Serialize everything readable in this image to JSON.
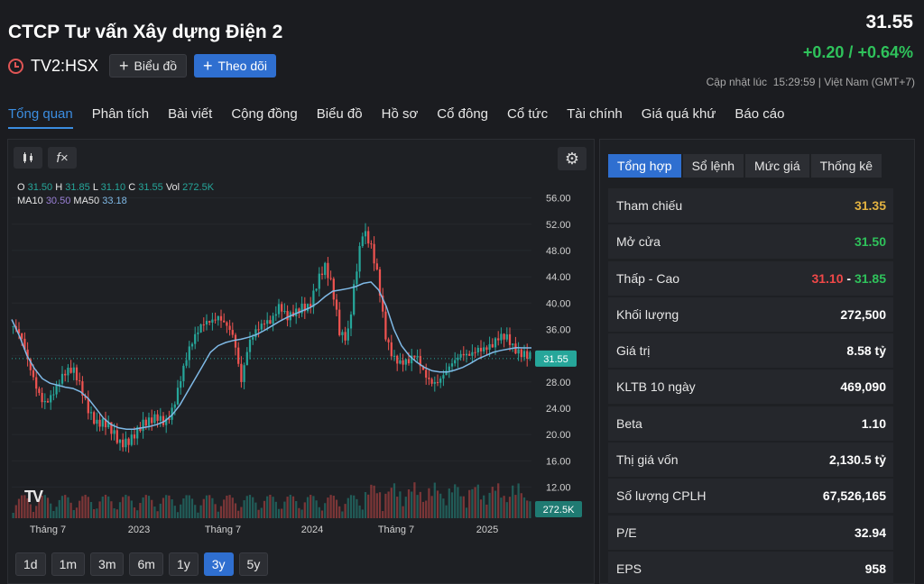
{
  "header": {
    "company": "CTCP Tư vấn Xây dựng Điện 2",
    "ticker": "TV2:HSX",
    "chart_button": "Biểu đồ",
    "follow_button": "Theo dõi",
    "price": "31.55",
    "change": "+0.20 / +0.64%",
    "updated_label": "Cập nhật lúc",
    "updated_time": "15:29:59 | Việt Nam (GMT+7)"
  },
  "nav": [
    "Tổng quan",
    "Phân tích",
    "Bài viết",
    "Cộng đồng",
    "Biểu đồ",
    "Hồ sơ",
    "Cổ đông",
    "Cổ tức",
    "Tài chính",
    "Giá quá khứ",
    "Báo cáo"
  ],
  "chart": {
    "ohlc": {
      "o_label": "O",
      "o": "31.50",
      "h_label": "H",
      "h": "31.85",
      "l_label": "L",
      "l": "31.10",
      "c_label": "C",
      "c": "31.55",
      "vol_label": "Vol",
      "vol": "272.5K"
    },
    "ma": {
      "ma10_label": "MA10",
      "ma10": "30.50",
      "ma50_label": "MA50",
      "ma50": "33.18"
    },
    "fx_icon": "f×",
    "logo": "TV",
    "last_price_tag": "31.55",
    "last_volume_tag": "272.5K"
  },
  "chart_data": {
    "type": "candlestick",
    "yaxis_ticks": [
      "56.00",
      "52.00",
      "48.00",
      "44.00",
      "40.00",
      "36.00",
      "32.00",
      "28.00",
      "24.00",
      "20.00",
      "16.00",
      "12.00"
    ],
    "ylim": [
      10,
      58
    ],
    "xaxis_ticks": [
      "Tháng 7",
      "2023",
      "Tháng 7",
      "2024",
      "Tháng 7",
      "2025"
    ],
    "close_series": [
      36.5,
      34,
      30,
      27.5,
      25.8,
      26.5,
      27.5,
      28.5,
      29.2,
      27.5,
      24.5,
      22,
      21,
      19.5,
      18.5,
      19.8,
      21,
      21.5,
      21,
      21.8,
      22,
      25,
      29,
      32,
      34,
      36.5,
      38,
      39,
      37,
      34,
      27,
      34,
      37,
      38,
      37,
      38.5,
      37,
      39,
      40.5,
      40,
      42.5,
      44.5,
      42,
      36,
      36,
      44,
      50,
      48,
      44,
      36,
      32.5,
      30.5,
      30,
      31.5,
      30,
      29,
      28.5,
      29,
      30,
      32,
      33,
      34,
      33,
      32.5,
      34,
      35,
      34,
      33,
      31.55
    ],
    "ma50_series": [
      37.5,
      35,
      32,
      30,
      28.5,
      27.8,
      27.5,
      27.2,
      27,
      26.5,
      25.5,
      24,
      22.5,
      21.5,
      21,
      20.8,
      20.8,
      21,
      21.2,
      21.5,
      22,
      23,
      24.5,
      26.5,
      28.5,
      30.5,
      32.5,
      33.5,
      34,
      34.3,
      34.5,
      34.8,
      35.2,
      35.8,
      36.5,
      37.2,
      37.8,
      38.3,
      38.8,
      39.3,
      40,
      41,
      41.8,
      42,
      42.2,
      42.5,
      43,
      43.2,
      42,
      39.5,
      36,
      33.5,
      32,
      31,
      30.2,
      29.7,
      29.5,
      29.5,
      29.8,
      30.2,
      30.8,
      31.5,
      32,
      32.5,
      32.8,
      33,
      33.2,
      33.18,
      33.18
    ]
  },
  "ranges": [
    "1d",
    "1m",
    "3m",
    "6m",
    "1y",
    "3y",
    "5y"
  ],
  "summary": {
    "tabs": [
      "Tổng hợp",
      "Sổ lệnh",
      "Mức giá",
      "Thống kê"
    ],
    "rows": [
      {
        "label": "Tham chiếu",
        "value": "31.35"
      },
      {
        "label": "Mở cửa",
        "value": "31.50"
      },
      {
        "label": "Thấp - Cao",
        "low": "31.10",
        "sep": "-",
        "high": "31.85"
      },
      {
        "label": "Khối lượng",
        "value": "272,500"
      },
      {
        "label": "Giá trị",
        "value": "8.58 tỷ"
      },
      {
        "label": "KLTB 10 ngày",
        "value": "469,090"
      },
      {
        "label": "Beta",
        "value": "1.10"
      },
      {
        "label": "Thị giá vốn",
        "value": "2,130.5 tỷ"
      },
      {
        "label": "Số lượng CPLH",
        "value": "67,526,165"
      },
      {
        "label": "P/E",
        "value": "32.94"
      },
      {
        "label": "EPS",
        "value": "958"
      }
    ]
  }
}
